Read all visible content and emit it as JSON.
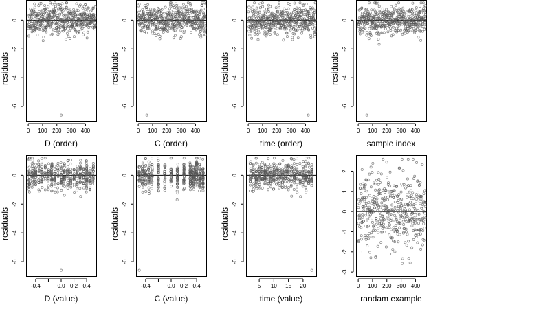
{
  "chart_data": [
    {
      "type": "scatter",
      "xlabel": "D (order)",
      "ylabel": "residuals",
      "xlim": [
        -15,
        475
      ],
      "ylim": [
        -7,
        1.4
      ],
      "xticks": [
        0,
        100,
        200,
        300,
        400
      ],
      "yticks": [
        0,
        -2,
        -4,
        -6
      ],
      "hline": 0,
      "points": {
        "n": 470,
        "x_kind": "index",
        "x_range": [
          1,
          470
        ],
        "y_min": -1.7,
        "y_max": 1.2,
        "spread": 0.5,
        "seed": 11
      },
      "outliers": [
        {
          "x": 230,
          "y": -6.6
        }
      ]
    },
    {
      "type": "scatter",
      "xlabel": "C (order)",
      "ylabel": "residuals",
      "xlim": [
        -15,
        475
      ],
      "ylim": [
        -7,
        1.4
      ],
      "xticks": [
        0,
        100,
        200,
        300,
        400
      ],
      "yticks": [
        0,
        -2,
        -4,
        -6
      ],
      "hline": 0,
      "points": {
        "n": 470,
        "x_kind": "index",
        "x_range": [
          1,
          470
        ],
        "y_min": -1.7,
        "y_max": 1.2,
        "spread": 0.5,
        "seed": 23
      },
      "outliers": [
        {
          "x": 60,
          "y": -6.6
        }
      ]
    },
    {
      "type": "scatter",
      "xlabel": "time (order)",
      "ylabel": "residuals",
      "xlim": [
        -15,
        475
      ],
      "ylim": [
        -7,
        1.4
      ],
      "xticks": [
        0,
        100,
        200,
        300,
        400
      ],
      "yticks": [
        0,
        -2,
        -4,
        -6
      ],
      "hline": 0,
      "points": {
        "n": 470,
        "x_kind": "index",
        "x_range": [
          1,
          470
        ],
        "y_min": -1.7,
        "y_max": 1.2,
        "spread": 0.5,
        "seed": 37
      },
      "outliers": [
        {
          "x": 420,
          "y": -6.6
        }
      ]
    },
    {
      "type": "scatter",
      "xlabel": "sample index",
      "ylabel": "residuals",
      "xlim": [
        -15,
        475
      ],
      "ylim": [
        -7,
        1.4
      ],
      "xticks": [
        0,
        100,
        200,
        300,
        400
      ],
      "yticks": [
        0,
        -2,
        -4,
        -6
      ],
      "hline": 0,
      "points": {
        "n": 470,
        "x_kind": "index",
        "x_range": [
          1,
          470
        ],
        "y_min": -1.7,
        "y_max": 1.2,
        "spread": 0.5,
        "seed": 41
      },
      "outliers": [
        {
          "x": 60,
          "y": -6.6
        }
      ]
    },
    {
      "type": "scatter",
      "xlabel": "D (value)",
      "ylabel": "residuals",
      "xlim": [
        -0.55,
        0.55
      ],
      "ylim": [
        -7,
        1.4
      ],
      "xticks": [
        -0.4,
        -0.2,
        0.0,
        0.2,
        0.4
      ],
      "xtick_labels": [
        "-0.4",
        "",
        "0.0",
        "0.2",
        "0.4"
      ],
      "yticks": [
        0,
        -2,
        -4,
        -6
      ],
      "hline": 0,
      "points": {
        "n": 470,
        "x_kind": "levels",
        "levels": [
          -0.5,
          -0.45,
          -0.4,
          -0.35,
          -0.3,
          -0.25,
          -0.2,
          -0.15,
          -0.1,
          -0.05,
          0.0,
          0.05,
          0.1,
          0.15,
          0.2,
          0.25,
          0.3,
          0.35,
          0.4,
          0.45,
          0.5
        ],
        "y_min": -1.7,
        "y_max": 1.2,
        "spread": 0.5,
        "seed": 53
      },
      "outliers": [
        {
          "x": 0.0,
          "y": -6.6
        }
      ]
    },
    {
      "type": "scatter",
      "xlabel": "C (value)",
      "ylabel": "residuals",
      "xlim": [
        -0.55,
        0.55
      ],
      "ylim": [
        -7,
        1.4
      ],
      "xticks": [
        -0.4,
        -0.2,
        0.0,
        0.2,
        0.4
      ],
      "xtick_labels": [
        "-0.4",
        "",
        "0.0",
        "0.2",
        "0.4"
      ],
      "yticks": [
        0,
        -2,
        -4,
        -6
      ],
      "hline": 0,
      "points": {
        "n": 470,
        "x_kind": "levels",
        "levels": [
          -0.5,
          -0.45,
          -0.4,
          -0.35,
          -0.3,
          -0.2,
          -0.1,
          0.0,
          0.1,
          0.2,
          0.3,
          0.35,
          0.4,
          0.45,
          0.5
        ],
        "y_min": -1.7,
        "y_max": 1.2,
        "spread": 0.5,
        "seed": 67
      },
      "outliers": [
        {
          "x": -0.5,
          "y": -6.6
        }
      ]
    },
    {
      "type": "scatter",
      "xlabel": "time (value)",
      "ylabel": "residuals",
      "xlim": [
        0.5,
        24.5
      ],
      "ylim": [
        -7,
        1.4
      ],
      "xticks": [
        5,
        10,
        15,
        20
      ],
      "yticks": [
        0,
        -2,
        -4,
        -6
      ],
      "hline": 0,
      "points": {
        "n": 470,
        "x_kind": "levels",
        "levels": [
          2,
          3,
          4,
          5,
          6,
          7,
          8,
          9,
          10,
          11,
          12,
          13,
          14,
          15,
          16,
          17,
          18,
          19,
          20,
          21,
          22,
          23
        ],
        "y_min": -1.7,
        "y_max": 1.2,
        "spread": 0.5,
        "seed": 79
      },
      "outliers": [
        {
          "x": 23,
          "y": -6.6
        }
      ]
    },
    {
      "type": "scatter",
      "xlabel": "randam example",
      "ylabel": "",
      "xlim": [
        -15,
        475
      ],
      "ylim": [
        -3.2,
        2.8
      ],
      "xticks": [
        0,
        100,
        200,
        300,
        400
      ],
      "yticks": [
        2,
        1,
        0,
        -1,
        -2,
        -3
      ],
      "hline": 0,
      "points": {
        "n": 470,
        "x_kind": "index",
        "x_range": [
          1,
          470
        ],
        "y_min": -3.0,
        "y_max": 2.6,
        "spread": 1.0,
        "seed": 97
      },
      "outliers": []
    }
  ]
}
